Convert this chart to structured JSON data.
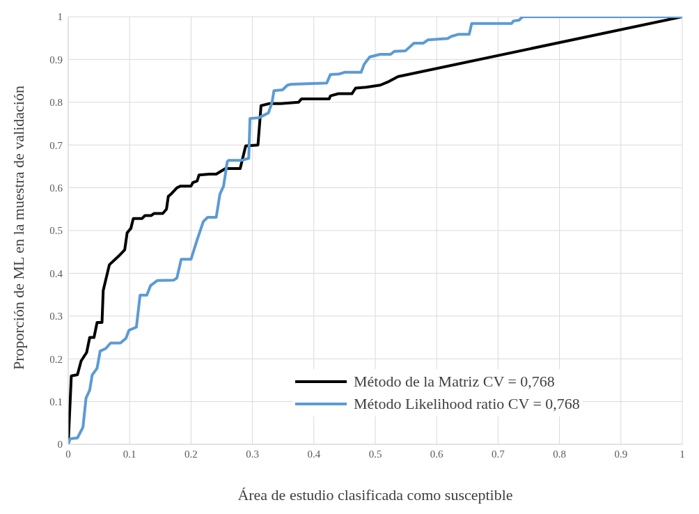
{
  "chart_data": {
    "type": "line",
    "xlabel": "Área de estudio clasificada como susceptible",
    "ylabel": "Proporción de ML en la muestra de validación",
    "xlim": [
      0,
      1
    ],
    "ylim": [
      0,
      1
    ],
    "xticks": [
      0,
      0.1,
      0.2,
      0.3,
      0.4,
      0.5,
      0.6,
      0.7,
      0.8,
      0.9,
      1
    ],
    "yticks": [
      0,
      0.1,
      0.2,
      0.3,
      0.4,
      0.5,
      0.6,
      0.7,
      0.8,
      0.9,
      1
    ],
    "grid": true,
    "legend": "bottom right",
    "line_style": "solid",
    "marker": "none",
    "series": [
      {
        "name": "Método de la Matriz CV = 0,768",
        "color": "#000000",
        "x": [
          0,
          0.005,
          0.015,
          0.021,
          0.03,
          0.035,
          0.042,
          0.047,
          0.055,
          0.057,
          0.067,
          0.082,
          0.092,
          0.096,
          0.102,
          0.106,
          0.12,
          0.125,
          0.135,
          0.14,
          0.154,
          0.16,
          0.163,
          0.168,
          0.177,
          0.183,
          0.2,
          0.203,
          0.21,
          0.213,
          0.23,
          0.241,
          0.256,
          0.28,
          0.289,
          0.309,
          0.314,
          0.328,
          0.346,
          0.375,
          0.38,
          0.425,
          0.427,
          0.44,
          0.462,
          0.468,
          0.485,
          0.508,
          0.52,
          0.537,
          1
        ],
        "values": [
          0,
          0.16,
          0.163,
          0.195,
          0.215,
          0.25,
          0.25,
          0.285,
          0.285,
          0.36,
          0.42,
          0.44,
          0.455,
          0.495,
          0.505,
          0.528,
          0.528,
          0.535,
          0.535,
          0.54,
          0.54,
          0.55,
          0.58,
          0.586,
          0.6,
          0.604,
          0.604,
          0.612,
          0.616,
          0.63,
          0.632,
          0.632,
          0.645,
          0.645,
          0.698,
          0.7,
          0.792,
          0.797,
          0.797,
          0.8,
          0.808,
          0.808,
          0.815,
          0.82,
          0.82,
          0.833,
          0.835,
          0.84,
          0.847,
          0.86,
          1
        ]
      },
      {
        "name": "Método Likelihood ratio CV = 0,768",
        "color": "#5b9bd5",
        "x": [
          0,
          0.003,
          0.015,
          0.024,
          0.029,
          0.035,
          0.039,
          0.047,
          0.052,
          0.061,
          0.069,
          0.085,
          0.094,
          0.099,
          0.111,
          0.117,
          0.128,
          0.134,
          0.145,
          0.172,
          0.177,
          0.184,
          0.2,
          0.209,
          0.212,
          0.22,
          0.227,
          0.241,
          0.247,
          0.253,
          0.259,
          0.261,
          0.282,
          0.294,
          0.296,
          0.311,
          0.326,
          0.332,
          0.335,
          0.349,
          0.357,
          0.363,
          0.421,
          0.427,
          0.441,
          0.45,
          0.477,
          0.482,
          0.491,
          0.508,
          0.525,
          0.531,
          0.549,
          0.563,
          0.578,
          0.586,
          0.618,
          0.624,
          0.636,
          0.653,
          0.657,
          0.722,
          0.725,
          0.734,
          0.74,
          1
        ],
        "values": [
          0,
          0.013,
          0.015,
          0.04,
          0.108,
          0.127,
          0.162,
          0.178,
          0.218,
          0.224,
          0.237,
          0.237,
          0.248,
          0.267,
          0.274,
          0.349,
          0.349,
          0.371,
          0.383,
          0.384,
          0.389,
          0.433,
          0.433,
          0.474,
          0.487,
          0.521,
          0.531,
          0.531,
          0.585,
          0.604,
          0.661,
          0.664,
          0.664,
          0.669,
          0.762,
          0.764,
          0.775,
          0.8,
          0.827,
          0.829,
          0.84,
          0.842,
          0.845,
          0.865,
          0.866,
          0.87,
          0.87,
          0.889,
          0.906,
          0.912,
          0.912,
          0.919,
          0.92,
          0.938,
          0.938,
          0.946,
          0.949,
          0.954,
          0.959,
          0.959,
          0.984,
          0.984,
          0.99,
          0.992,
          1,
          1
        ]
      }
    ]
  }
}
